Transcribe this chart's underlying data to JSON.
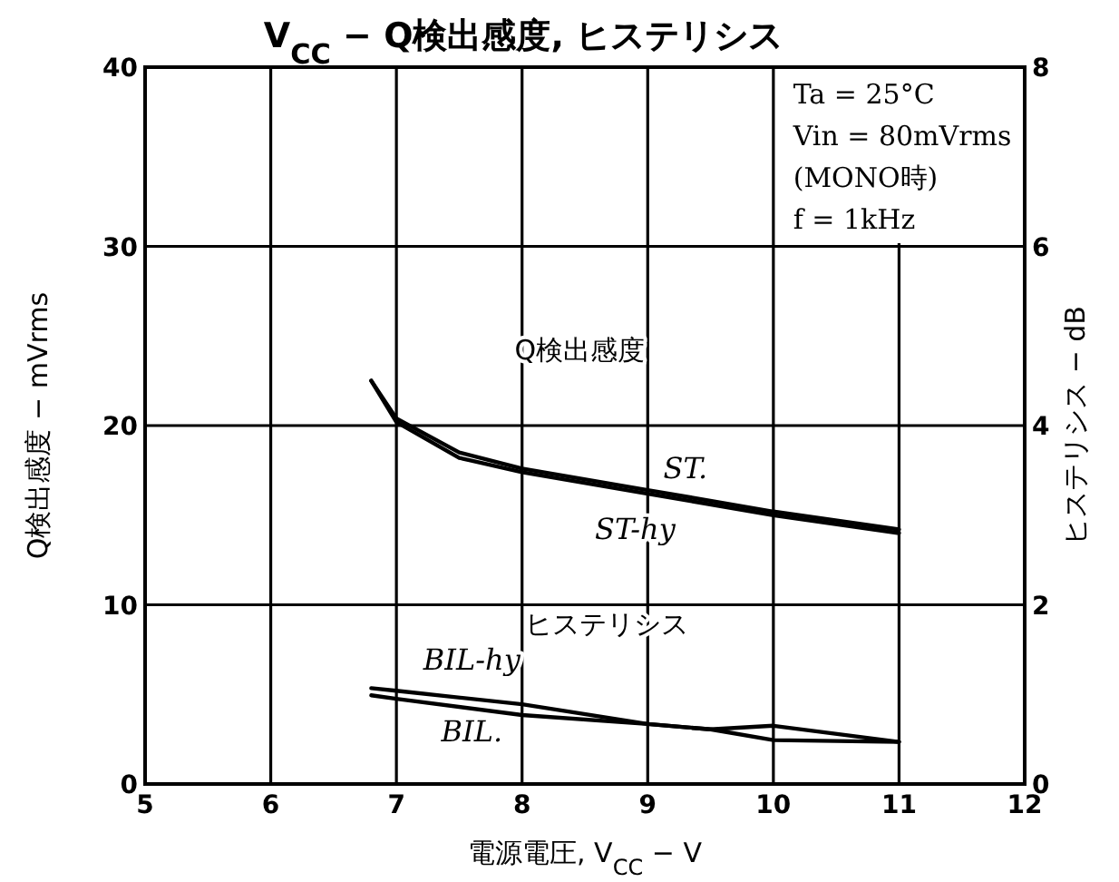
{
  "chart_data": {
    "type": "line",
    "title": "V$_{CC}$ − Q検出感度, ヒステリシス",
    "xlabel": "電源電圧, V$_{CC}$ − V",
    "ylabel": "Q検出感度 − mVrms",
    "y2label": "ヒステリシス − dB",
    "xlim": [
      5,
      12
    ],
    "xticks": [
      5,
      6,
      7,
      8,
      9,
      10,
      11,
      12
    ],
    "ylim": [
      0,
      40
    ],
    "yticks": [
      0,
      10,
      20,
      30,
      40
    ],
    "y2lim": [
      0,
      8
    ],
    "y2ticks": [
      0,
      2,
      4,
      6,
      8
    ],
    "grid": true,
    "legend": false,
    "marker": "none",
    "line_style": "solid",
    "series": [
      {
        "name": "ST.",
        "color": "#000000",
        "x": [
          6.8,
          7,
          7.5,
          8,
          9,
          10,
          11
        ],
        "values": [
          22.5,
          20.4,
          18.5,
          17.6,
          16.4,
          15.2,
          14.2
        ]
      },
      {
        "name": "ST-hy",
        "color": "#000000",
        "x": [
          6.8,
          7,
          7.5,
          8,
          9,
          10,
          11
        ],
        "values": [
          22.5,
          20.2,
          18.2,
          17.4,
          16.2,
          15.0,
          14.0
        ]
      },
      {
        "name": "BIL-hy",
        "color": "#000000",
        "axis": "y2",
        "x": [
          6.8,
          7,
          8,
          9,
          9.5,
          10,
          11
        ],
        "values": [
          1.07,
          1.04,
          0.89,
          0.67,
          0.61,
          0.65,
          0.47
        ]
      },
      {
        "name": "BIL.",
        "color": "#000000",
        "axis": "y2",
        "x": [
          6.8,
          7,
          8,
          9,
          9.5,
          10,
          11
        ],
        "values": [
          0.99,
          0.95,
          0.77,
          0.67,
          0.61,
          0.49,
          0.47
        ]
      }
    ],
    "annotations": [
      "Q検出感度",
      "ヒステリシス",
      "Ta = 25°C",
      "Vin = 80mVrms",
      "(MONO時)",
      "f = 1kHz"
    ]
  }
}
